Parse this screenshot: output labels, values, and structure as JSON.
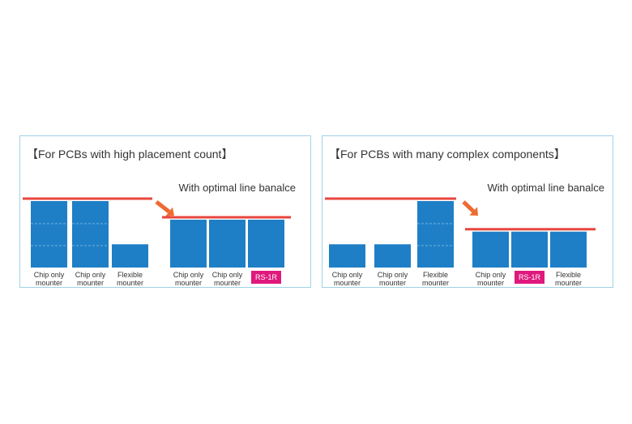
{
  "colors": {
    "bar": "#1f7fc6",
    "bar_divider": "#6fb0df",
    "line": "#e8463e",
    "arrow": "#ee6a30",
    "badge": "#e0197d",
    "border": "#9fd3e6"
  },
  "panels": [
    {
      "title": "【For PCBs with high placement count】",
      "subtitle": "With optimal line banalce",
      "before": {
        "labels": [
          "Chip only\nmounter",
          "Chip only\nmounter",
          "Flexible\nmounter"
        ],
        "values": [
          100,
          100,
          35
        ]
      },
      "after": {
        "labels": [
          "Chip only\nmounter",
          "Chip only\nmounter",
          "RS-1R"
        ],
        "values": [
          72,
          72,
          72
        ],
        "badge_index": 2
      }
    },
    {
      "title": "【For PCBs with many complex components】",
      "subtitle": "With optimal line banalce",
      "before": {
        "labels": [
          "Chip only\nmounter",
          "Chip only\nmounter",
          "Flexible\nmounter"
        ],
        "values": [
          35,
          35,
          100
        ]
      },
      "after": {
        "labels": [
          "Chip only\nmounter",
          "RS-1R",
          "Flexible\nmounter"
        ],
        "values": [
          54,
          54,
          54
        ],
        "badge_index": 1
      }
    }
  ]
}
